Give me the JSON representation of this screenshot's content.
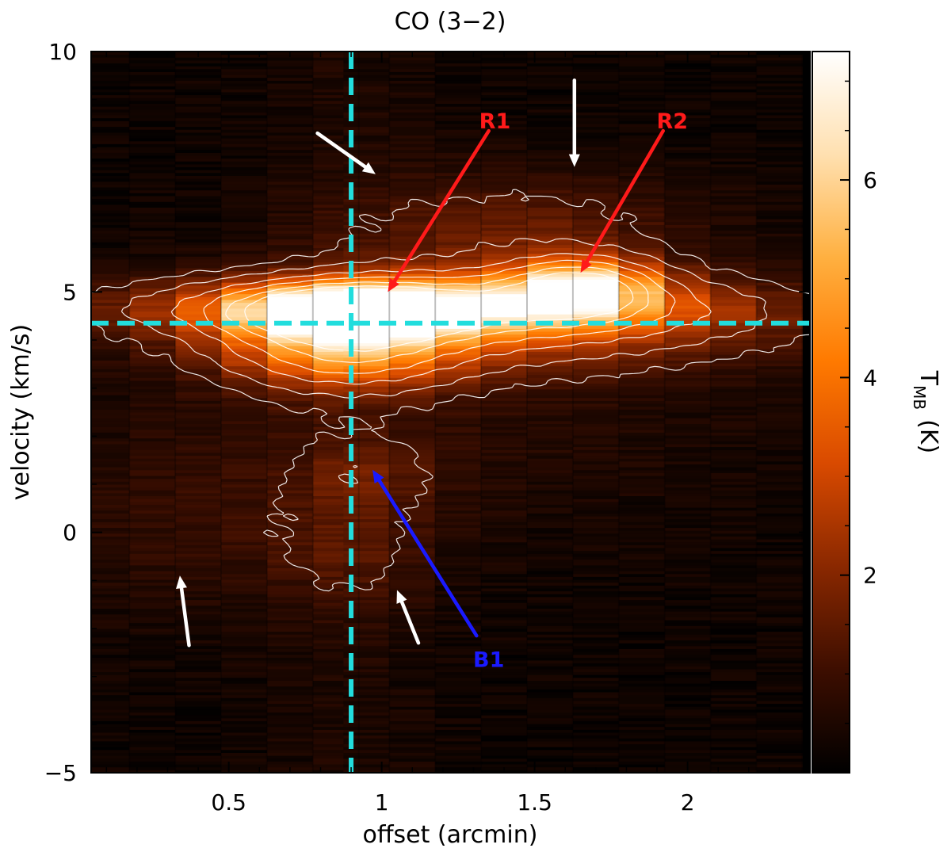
{
  "chart_data": {
    "type": "heatmap",
    "title": "CO (3−2)",
    "xlabel": "offset (arcmin)",
    "ylabel": "velocity (km/s)",
    "colorbar_label": "T",
    "colorbar_label_sub": "MB",
    "colorbar_label_unit": "(K)",
    "xlim": [
      0.05,
      2.4
    ],
    "ylim": [
      -5,
      10
    ],
    "zlim": [
      0,
      7.3
    ],
    "x_ticks": [
      {
        "value": 0.5,
        "label": "0.5"
      },
      {
        "value": 1.0,
        "label": "1"
      },
      {
        "value": 1.5,
        "label": "1.5"
      },
      {
        "value": 2.0,
        "label": "2"
      }
    ],
    "y_ticks": [
      {
        "value": -5,
        "label": "−5"
      },
      {
        "value": 0,
        "label": "0"
      },
      {
        "value": 5,
        "label": "5"
      },
      {
        "value": 10,
        "label": "10"
      }
    ],
    "colorbar_ticks": [
      {
        "value": 2,
        "label": "2"
      },
      {
        "value": 4,
        "label": "4"
      },
      {
        "value": 6,
        "label": "6"
      }
    ],
    "colormap": [
      "#000000",
      "#3d0e00",
      "#8a2800",
      "#d94a00",
      "#ff7a00",
      "#ffb040",
      "#ffe0b0",
      "#ffffff"
    ],
    "offsets": [
      0.1,
      0.25,
      0.4,
      0.55,
      0.7,
      0.85,
      0.95,
      1.1,
      1.25,
      1.4,
      1.55,
      1.7,
      1.85,
      2.0,
      2.15,
      2.3
    ],
    "reference_lines": {
      "color": "#22dddd",
      "vertical_offset": 0.9,
      "horizontal_velocity": 4.35
    },
    "annotations": [
      {
        "label": "R1",
        "color": "#ff1a1a",
        "text_x": 1.37,
        "text_y": 8.4,
        "tail_x": 1.35,
        "tail_y": 8.35,
        "head_x": 1.02,
        "head_y": 5.0
      },
      {
        "label": "R2",
        "color": "#ff1a1a",
        "text_x": 1.95,
        "text_y": 8.4,
        "tail_x": 1.92,
        "tail_y": 8.35,
        "head_x": 1.65,
        "head_y": 5.4
      },
      {
        "label": "B1",
        "color": "#1a1aff",
        "text_x": 1.35,
        "text_y": -2.8,
        "tail_x": 1.31,
        "tail_y": -2.15,
        "head_x": 0.97,
        "head_y": 1.3
      }
    ],
    "white_arrows": [
      {
        "tail_x": 0.79,
        "tail_y": 8.3,
        "head_x": 0.98,
        "head_y": 7.45
      },
      {
        "tail_x": 1.63,
        "tail_y": 9.4,
        "head_x": 1.63,
        "head_y": 7.6
      },
      {
        "tail_x": 0.37,
        "tail_y": -2.35,
        "head_x": 0.34,
        "head_y": -0.9
      },
      {
        "tail_x": 1.12,
        "tail_y": -2.3,
        "head_x": 1.05,
        "head_y": -1.2
      }
    ]
  }
}
